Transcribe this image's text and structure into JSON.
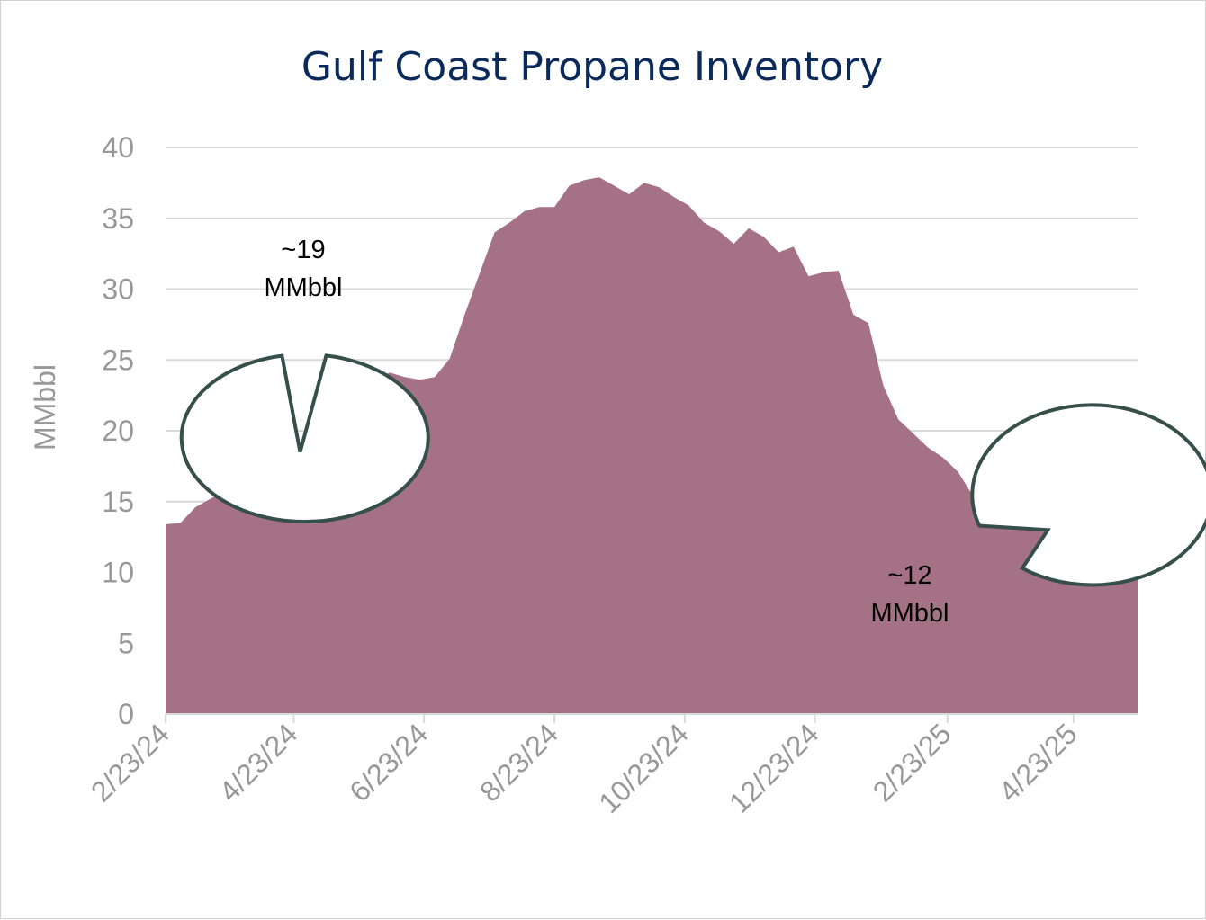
{
  "chart_data": {
    "type": "area",
    "title": "Gulf Coast Propane Inventory",
    "ylabel": "MMbbl",
    "xlabel": "",
    "ylim": [
      0,
      40
    ],
    "yticks": [
      0,
      5,
      10,
      15,
      20,
      25,
      30,
      35,
      40
    ],
    "xlim": [
      "2024-02-23",
      "2025-05-23"
    ],
    "xticks": [
      {
        "date": "2024-02-23",
        "label": "2/23/24"
      },
      {
        "date": "2024-04-23",
        "label": "4/23/24"
      },
      {
        "date": "2024-06-23",
        "label": "6/23/24"
      },
      {
        "date": "2024-08-23",
        "label": "8/23/24"
      },
      {
        "date": "2024-10-23",
        "label": "10/23/24"
      },
      {
        "date": "2024-12-23",
        "label": "12/23/24"
      },
      {
        "date": "2025-02-23",
        "label": "2/23/25"
      },
      {
        "date": "2025-04-23",
        "label": "4/23/25"
      }
    ],
    "grid": true,
    "legend": "none",
    "series": [
      {
        "color": "#a57185",
        "points": [
          [
            "2024-02-23",
            13.4
          ],
          [
            "2024-03-01",
            13.5
          ],
          [
            "2024-03-08",
            14.6
          ],
          [
            "2024-03-15",
            15.2
          ],
          [
            "2024-03-22",
            15.8
          ],
          [
            "2024-03-29",
            15.9
          ],
          [
            "2024-04-05",
            18.3
          ],
          [
            "2024-04-12",
            19.5
          ],
          [
            "2024-04-19",
            19.2
          ],
          [
            "2024-04-26",
            18.5
          ],
          [
            "2024-05-03",
            19.4
          ],
          [
            "2024-05-10",
            21.6
          ],
          [
            "2024-05-17",
            22.9
          ],
          [
            "2024-05-24",
            23.4
          ],
          [
            "2024-05-31",
            23.7
          ],
          [
            "2024-06-07",
            24.1
          ],
          [
            "2024-06-14",
            23.8
          ],
          [
            "2024-06-21",
            23.6
          ],
          [
            "2024-06-28",
            23.8
          ],
          [
            "2024-07-05",
            25.1
          ],
          [
            "2024-07-12",
            28.2
          ],
          [
            "2024-07-19",
            31.1
          ],
          [
            "2024-07-26",
            34.0
          ],
          [
            "2024-08-02",
            34.7
          ],
          [
            "2024-08-09",
            35.5
          ],
          [
            "2024-08-16",
            35.8
          ],
          [
            "2024-08-23",
            35.8
          ],
          [
            "2024-08-30",
            37.3
          ],
          [
            "2024-09-06",
            37.7
          ],
          [
            "2024-09-13",
            37.9
          ],
          [
            "2024-09-20",
            37.3
          ],
          [
            "2024-09-27",
            36.7
          ],
          [
            "2024-10-04",
            37.5
          ],
          [
            "2024-10-11",
            37.2
          ],
          [
            "2024-10-18",
            36.5
          ],
          [
            "2024-10-25",
            35.9
          ],
          [
            "2024-11-01",
            34.7
          ],
          [
            "2024-11-08",
            34.1
          ],
          [
            "2024-11-15",
            33.2
          ],
          [
            "2024-11-22",
            34.3
          ],
          [
            "2024-11-29",
            33.7
          ],
          [
            "2024-12-06",
            32.6
          ],
          [
            "2024-12-13",
            33.0
          ],
          [
            "2024-12-20",
            30.9
          ],
          [
            "2024-12-27",
            31.2
          ],
          [
            "2025-01-03",
            31.3
          ],
          [
            "2025-01-10",
            28.2
          ],
          [
            "2025-01-17",
            27.6
          ],
          [
            "2025-01-24",
            23.2
          ],
          [
            "2025-01-31",
            20.8
          ],
          [
            "2025-02-07",
            19.8
          ],
          [
            "2025-02-14",
            18.8
          ],
          [
            "2025-02-21",
            18.1
          ],
          [
            "2025-02-28",
            17.1
          ],
          [
            "2025-03-07",
            15.4
          ],
          [
            "2025-03-14",
            14.5
          ],
          [
            "2025-03-21",
            13.2
          ],
          [
            "2025-03-28",
            13.1
          ],
          [
            "2025-04-04",
            13.4
          ],
          [
            "2025-04-11",
            12.9
          ],
          [
            "2025-04-14",
            12.0
          ],
          [
            "2025-04-18",
            13.6
          ],
          [
            "2025-04-25",
            13.2
          ],
          [
            "2025-05-02",
            13.3
          ],
          [
            "2025-05-09",
            14.1
          ],
          [
            "2025-05-16",
            14.0
          ],
          [
            "2025-05-23",
            14.0
          ]
        ]
      }
    ],
    "annotations": [
      {
        "line1": "~19",
        "line2": "MMbbl",
        "target_date": "2024-04-26",
        "target_value": 18.5
      },
      {
        "line1": "~12",
        "line2": "MMbbl",
        "target_date": "2025-04-11",
        "target_value": 13.0
      }
    ]
  },
  "colors": {
    "title": "#0b2a5c",
    "axis_text": "#989898",
    "grid": "#d9d9d9",
    "callout_stroke": "#364f4b",
    "callout_fill": "#ffffff"
  }
}
